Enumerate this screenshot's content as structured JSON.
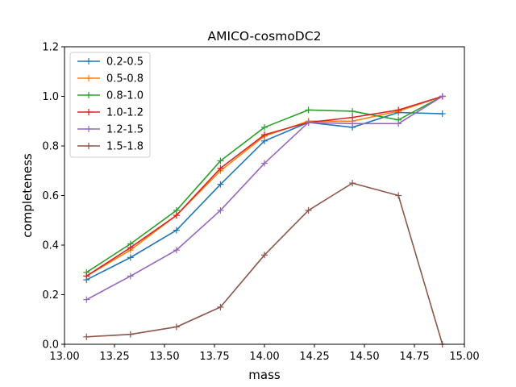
{
  "chart_data": {
    "type": "line",
    "title": "AMICO-cosmoDC2",
    "xlabel": "mass",
    "ylabel": "completeness",
    "xlim": [
      13.0,
      15.0
    ],
    "ylim": [
      0.0,
      1.2
    ],
    "x_ticks": [
      "13.00",
      "13.25",
      "13.50",
      "13.75",
      "14.00",
      "14.25",
      "14.50",
      "14.75",
      "15.00"
    ],
    "y_ticks": [
      "0.0",
      "0.2",
      "0.4",
      "0.6",
      "0.8",
      "1.0",
      "1.2"
    ],
    "grid": false,
    "legend_position": "upper-left",
    "x": [
      13.11,
      13.33,
      13.56,
      13.78,
      14.0,
      14.22,
      14.44,
      14.67,
      14.89
    ],
    "series": [
      {
        "name": "0.2-0.5",
        "color": "#1f77b4",
        "values": [
          0.26,
          0.35,
          0.46,
          0.645,
          0.82,
          0.895,
          0.875,
          0.935,
          0.93
        ]
      },
      {
        "name": "0.5-0.8",
        "color": "#ff7f0e",
        "values": [
          0.275,
          0.38,
          0.52,
          0.7,
          0.84,
          0.9,
          0.9,
          0.94,
          1.0
        ]
      },
      {
        "name": "0.8-1.0",
        "color": "#2ca02c",
        "values": [
          0.29,
          0.405,
          0.54,
          0.74,
          0.875,
          0.945,
          0.94,
          0.905,
          1.0
        ]
      },
      {
        "name": "1.0-1.2",
        "color": "#d62728",
        "values": [
          0.275,
          0.39,
          0.52,
          0.71,
          0.845,
          0.895,
          0.915,
          0.945,
          1.0
        ]
      },
      {
        "name": "1.2-1.5",
        "color": "#9467bd",
        "values": [
          0.18,
          0.275,
          0.38,
          0.54,
          0.73,
          0.895,
          0.89,
          0.89,
          1.0
        ]
      },
      {
        "name": "1.5-1.8",
        "color": "#8c564b",
        "values": [
          0.03,
          0.04,
          0.07,
          0.15,
          0.36,
          0.54,
          0.65,
          0.6,
          0.0
        ]
      }
    ]
  }
}
